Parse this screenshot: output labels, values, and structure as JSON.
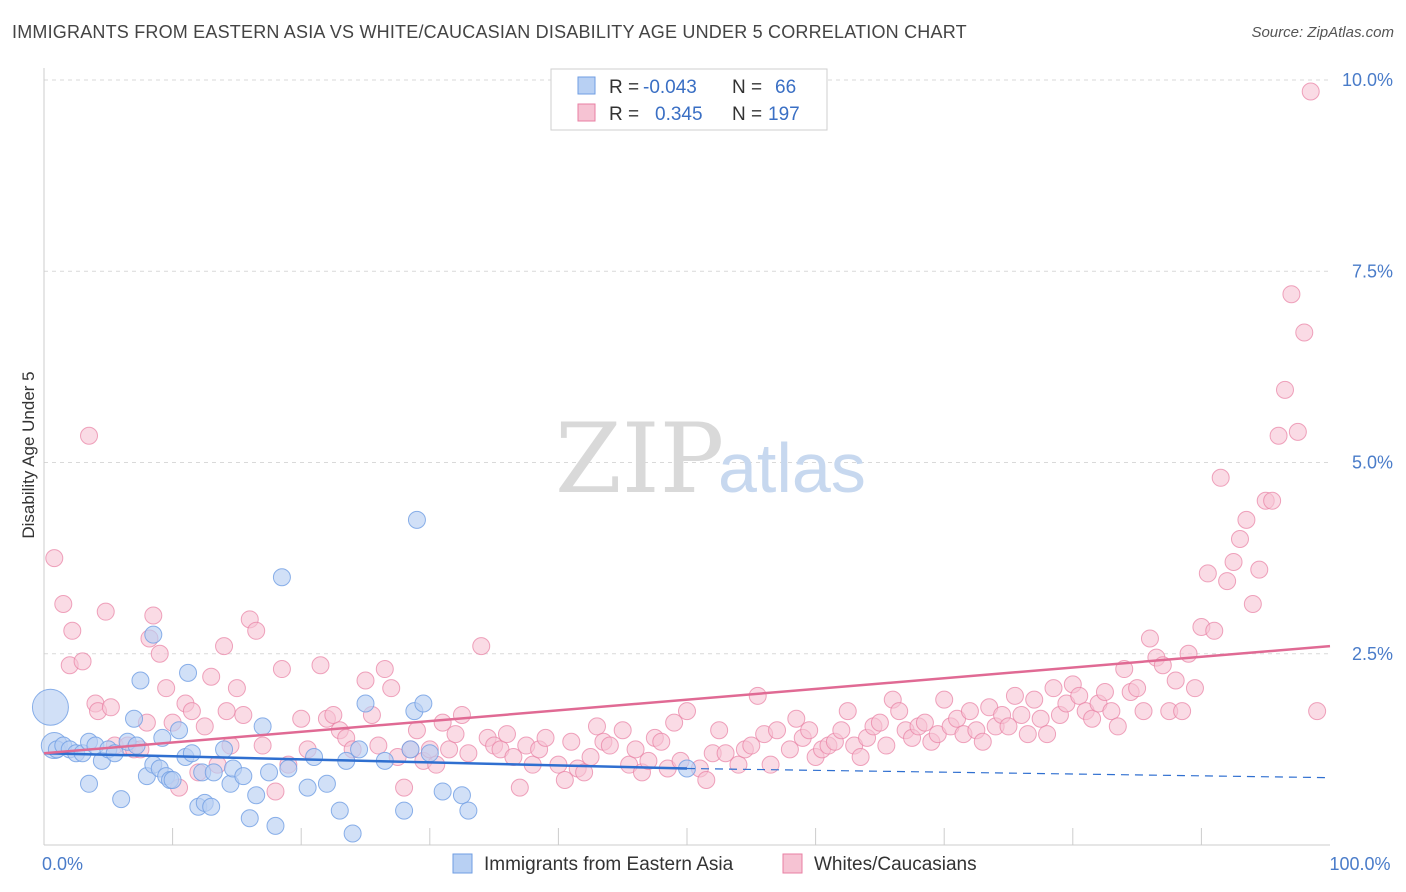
{
  "title": "IMMIGRANTS FROM EASTERN ASIA VS WHITE/CAUCASIAN DISABILITY AGE UNDER 5 CORRELATION CHART",
  "source": "Source: ZipAtlas.com",
  "watermark": {
    "zip": "ZIP",
    "atlas": "atlas"
  },
  "colors": {
    "blue": "#6f9ee3",
    "blue_fill": "#b8d0f3",
    "blue_line": "#2f6fd0",
    "pink": "#e87fa3",
    "pink_fill": "#f6c3d3",
    "pink_line": "#e06a94",
    "grid": "#d9d9d9",
    "tick_label": "#4a7cc9"
  },
  "legend": {
    "rows": [
      {
        "r_label": "R =",
        "r_value": "-0.043",
        "n_label": "N =",
        "n_value": "66"
      },
      {
        "r_label": "R =",
        "r_value": "0.345",
        "n_label": "N =",
        "n_value": "197"
      }
    ]
  },
  "chart_data": {
    "type": "scatter",
    "xlabel": "",
    "ylabel": "Disability Age Under 5",
    "xlim": [
      0,
      100
    ],
    "ylim": [
      0,
      10.5
    ],
    "y_ticks": [
      {
        "value": 2.5,
        "label": "2.5%"
      },
      {
        "value": 5.0,
        "label": "5.0%"
      },
      {
        "value": 7.5,
        "label": "7.5%"
      },
      {
        "value": 10.0,
        "label": "10.0%"
      }
    ],
    "x_ticks": [
      {
        "value": 0,
        "label": "0.0%"
      },
      {
        "value": 100,
        "label": "100.0%"
      }
    ],
    "grid": true,
    "legend_position": "top-center",
    "series": [
      {
        "name": "Immigrants from Eastern Asia",
        "color": "#6f9ee3",
        "trend": {
          "x0": 0,
          "y0": 1.2,
          "x1": 50,
          "y1": 1.0,
          "dashed_to_x": 100,
          "dashed_to_y": 0.88
        },
        "points": [
          [
            0.5,
            1.8,
            3
          ],
          [
            0.8,
            1.3,
            2
          ],
          [
            1.0,
            1.25,
            1
          ],
          [
            1.5,
            1.3,
            1
          ],
          [
            2.0,
            1.25,
            1
          ],
          [
            2.5,
            1.2,
            1
          ],
          [
            3.0,
            1.2,
            1
          ],
          [
            3.5,
            1.35,
            1
          ],
          [
            3.5,
            0.8,
            1
          ],
          [
            4.0,
            1.3,
            1
          ],
          [
            4.5,
            1.1,
            1
          ],
          [
            5.0,
            1.25,
            1
          ],
          [
            5.5,
            1.2,
            1
          ],
          [
            6.0,
            0.6,
            1
          ],
          [
            6.5,
            1.35,
            1
          ],
          [
            7.0,
            1.65,
            1
          ],
          [
            7.2,
            1.3,
            1
          ],
          [
            7.5,
            2.15,
            1
          ],
          [
            8.0,
            0.9,
            1
          ],
          [
            8.5,
            1.05,
            1
          ],
          [
            8.5,
            2.75,
            1
          ],
          [
            9.0,
            1.0,
            1
          ],
          [
            9.2,
            1.4,
            1
          ],
          [
            9.5,
            0.9,
            1
          ],
          [
            9.8,
            0.85,
            1
          ],
          [
            10.0,
            0.85,
            1
          ],
          [
            10.5,
            1.5,
            1
          ],
          [
            11.0,
            1.15,
            1
          ],
          [
            11.2,
            2.25,
            1
          ],
          [
            11.5,
            1.2,
            1
          ],
          [
            12.0,
            0.5,
            1
          ],
          [
            12.3,
            0.95,
            1
          ],
          [
            12.5,
            0.55,
            1
          ],
          [
            13.0,
            0.5,
            1
          ],
          [
            13.2,
            0.95,
            1
          ],
          [
            14.0,
            1.25,
            1
          ],
          [
            14.5,
            0.8,
            1
          ],
          [
            14.7,
            1.0,
            1
          ],
          [
            15.5,
            0.9,
            1
          ],
          [
            16.0,
            0.35,
            1
          ],
          [
            16.5,
            0.65,
            1
          ],
          [
            17.0,
            1.55,
            1
          ],
          [
            17.5,
            0.95,
            1
          ],
          [
            18.0,
            0.25,
            1
          ],
          [
            18.5,
            3.5,
            1
          ],
          [
            19.0,
            1.0,
            1
          ],
          [
            20.5,
            0.75,
            1
          ],
          [
            21.0,
            1.15,
            1
          ],
          [
            22.0,
            0.8,
            1
          ],
          [
            23.0,
            0.45,
            1
          ],
          [
            23.5,
            1.1,
            1
          ],
          [
            24.0,
            0.15,
            1
          ],
          [
            24.5,
            1.25,
            1
          ],
          [
            25.0,
            1.85,
            1
          ],
          [
            26.5,
            1.1,
            1
          ],
          [
            28.0,
            0.45,
            1
          ],
          [
            28.5,
            1.25,
            1
          ],
          [
            28.8,
            1.75,
            1
          ],
          [
            29.0,
            4.25,
            1
          ],
          [
            29.5,
            1.85,
            1
          ],
          [
            30.0,
            1.2,
            1
          ],
          [
            31.0,
            0.7,
            1
          ],
          [
            32.5,
            0.65,
            1
          ],
          [
            33.0,
            0.45,
            1
          ],
          [
            50.0,
            1.0,
            1
          ]
        ]
      },
      {
        "name": "Whites/Caucasians",
        "color": "#e87fa3",
        "trend": {
          "x0": 0,
          "y0": 1.2,
          "x1": 100,
          "y1": 2.6
        },
        "points": [
          [
            0.8,
            3.75
          ],
          [
            1.5,
            3.15
          ],
          [
            2.0,
            2.35
          ],
          [
            2.2,
            2.8
          ],
          [
            3.0,
            2.4
          ],
          [
            3.5,
            5.35
          ],
          [
            4.0,
            1.85
          ],
          [
            4.2,
            1.75
          ],
          [
            4.8,
            3.05
          ],
          [
            5.2,
            1.8
          ],
          [
            5.5,
            1.3
          ],
          [
            6.5,
            1.3
          ],
          [
            7.0,
            1.25
          ],
          [
            7.5,
            1.25
          ],
          [
            8.0,
            1.6
          ],
          [
            8.2,
            2.7
          ],
          [
            8.5,
            3.0
          ],
          [
            9.0,
            2.5
          ],
          [
            9.5,
            2.05
          ],
          [
            10.0,
            1.6
          ],
          [
            10.5,
            0.75
          ],
          [
            11.0,
            1.85
          ],
          [
            11.5,
            1.75
          ],
          [
            12.0,
            0.95
          ],
          [
            12.5,
            1.55
          ],
          [
            13.0,
            2.2
          ],
          [
            13.5,
            1.05
          ],
          [
            14.0,
            2.6
          ],
          [
            14.2,
            1.75
          ],
          [
            14.5,
            1.3
          ],
          [
            15.0,
            2.05
          ],
          [
            15.5,
            1.7
          ],
          [
            16.0,
            2.95
          ],
          [
            16.5,
            2.8
          ],
          [
            17.0,
            1.3
          ],
          [
            18.0,
            0.7
          ],
          [
            18.5,
            2.3
          ],
          [
            19.0,
            1.05
          ],
          [
            20.0,
            1.65
          ],
          [
            20.5,
            1.25
          ],
          [
            21.5,
            2.35
          ],
          [
            22.0,
            1.65
          ],
          [
            22.5,
            1.7
          ],
          [
            23.0,
            1.5
          ],
          [
            23.5,
            1.4
          ],
          [
            24.0,
            1.25
          ],
          [
            25.0,
            2.15
          ],
          [
            25.5,
            1.7
          ],
          [
            26.0,
            1.3
          ],
          [
            26.5,
            2.3
          ],
          [
            27.0,
            2.05
          ],
          [
            27.5,
            1.15
          ],
          [
            28.0,
            0.75
          ],
          [
            28.5,
            1.25
          ],
          [
            29.0,
            1.5
          ],
          [
            29.5,
            1.1
          ],
          [
            30.0,
            1.25
          ],
          [
            30.5,
            1.05
          ],
          [
            31.0,
            1.6
          ],
          [
            31.5,
            1.25
          ],
          [
            32.0,
            1.45
          ],
          [
            32.5,
            1.7
          ],
          [
            33.0,
            1.2
          ],
          [
            34.0,
            2.6
          ],
          [
            34.5,
            1.4
          ],
          [
            35.0,
            1.3
          ],
          [
            35.5,
            1.25
          ],
          [
            36.0,
            1.45
          ],
          [
            36.5,
            1.15
          ],
          [
            37.0,
            0.75
          ],
          [
            37.5,
            1.3
          ],
          [
            38.0,
            1.05
          ],
          [
            38.5,
            1.25
          ],
          [
            39.0,
            1.4
          ],
          [
            40.0,
            1.05
          ],
          [
            40.5,
            0.85
          ],
          [
            41.0,
            1.35
          ],
          [
            41.5,
            1.0
          ],
          [
            42.0,
            0.95
          ],
          [
            42.5,
            1.15
          ],
          [
            43.0,
            1.55
          ],
          [
            43.5,
            1.35
          ],
          [
            44.0,
            1.3
          ],
          [
            45.0,
            1.5
          ],
          [
            45.5,
            1.05
          ],
          [
            46.0,
            1.25
          ],
          [
            46.5,
            0.95
          ],
          [
            47.0,
            1.1
          ],
          [
            47.5,
            1.4
          ],
          [
            48.0,
            1.35
          ],
          [
            48.5,
            1.0
          ],
          [
            49.0,
            1.6
          ],
          [
            49.5,
            1.1
          ],
          [
            50.0,
            1.75
          ],
          [
            51.0,
            1.0
          ],
          [
            51.5,
            0.85
          ],
          [
            52.0,
            1.2
          ],
          [
            52.5,
            1.5
          ],
          [
            53.0,
            1.2
          ],
          [
            54.0,
            1.05
          ],
          [
            54.5,
            1.25
          ],
          [
            55.0,
            1.3
          ],
          [
            55.5,
            1.95
          ],
          [
            56.0,
            1.45
          ],
          [
            56.5,
            1.05
          ],
          [
            57.0,
            1.5
          ],
          [
            58.0,
            1.25
          ],
          [
            58.5,
            1.65
          ],
          [
            59.0,
            1.4
          ],
          [
            59.5,
            1.5
          ],
          [
            60.0,
            1.15
          ],
          [
            60.5,
            1.25
          ],
          [
            61.0,
            1.3
          ],
          [
            61.5,
            1.35
          ],
          [
            62.0,
            1.5
          ],
          [
            62.5,
            1.75
          ],
          [
            63.0,
            1.3
          ],
          [
            63.5,
            1.15
          ],
          [
            64.0,
            1.4
          ],
          [
            64.5,
            1.55
          ],
          [
            65.0,
            1.6
          ],
          [
            65.5,
            1.3
          ],
          [
            66.0,
            1.9
          ],
          [
            66.5,
            1.75
          ],
          [
            67.0,
            1.5
          ],
          [
            67.5,
            1.4
          ],
          [
            68.0,
            1.55
          ],
          [
            68.5,
            1.6
          ],
          [
            69.0,
            1.35
          ],
          [
            69.5,
            1.45
          ],
          [
            70.0,
            1.9
          ],
          [
            70.5,
            1.55
          ],
          [
            71.0,
            1.65
          ],
          [
            71.5,
            1.45
          ],
          [
            72.0,
            1.75
          ],
          [
            72.5,
            1.5
          ],
          [
            73.0,
            1.35
          ],
          [
            73.5,
            1.8
          ],
          [
            74.0,
            1.55
          ],
          [
            74.5,
            1.7
          ],
          [
            75.0,
            1.55
          ],
          [
            75.5,
            1.95
          ],
          [
            76.0,
            1.7
          ],
          [
            76.5,
            1.45
          ],
          [
            77.0,
            1.9
          ],
          [
            77.5,
            1.65
          ],
          [
            78.0,
            1.45
          ],
          [
            78.5,
            2.05
          ],
          [
            79.0,
            1.7
          ],
          [
            79.5,
            1.85
          ],
          [
            80.0,
            2.1
          ],
          [
            80.5,
            1.95
          ],
          [
            81.0,
            1.75
          ],
          [
            81.5,
            1.65
          ],
          [
            82.0,
            1.85
          ],
          [
            82.5,
            2.0
          ],
          [
            83.0,
            1.75
          ],
          [
            83.5,
            1.55
          ],
          [
            84.0,
            2.3
          ],
          [
            84.5,
            2.0
          ],
          [
            85.0,
            2.05
          ],
          [
            85.5,
            1.75
          ],
          [
            86.0,
            2.7
          ],
          [
            86.5,
            2.45
          ],
          [
            87.0,
            2.35
          ],
          [
            87.5,
            1.75
          ],
          [
            88.0,
            2.15
          ],
          [
            88.5,
            1.75
          ],
          [
            89.0,
            2.5
          ],
          [
            89.5,
            2.05
          ],
          [
            90.0,
            2.85
          ],
          [
            90.5,
            3.55
          ],
          [
            91.0,
            2.8
          ],
          [
            91.5,
            4.8
          ],
          [
            92.0,
            3.45
          ],
          [
            92.5,
            3.7
          ],
          [
            93.0,
            4.0
          ],
          [
            93.5,
            4.25
          ],
          [
            94.0,
            3.15
          ],
          [
            94.5,
            3.6
          ],
          [
            95.0,
            4.5
          ],
          [
            95.5,
            4.5
          ],
          [
            96.0,
            5.35
          ],
          [
            96.5,
            5.95
          ],
          [
            97.0,
            7.2
          ],
          [
            97.5,
            5.4
          ],
          [
            98.0,
            6.7
          ],
          [
            98.5,
            9.85
          ],
          [
            99.0,
            1.75
          ]
        ]
      }
    ]
  },
  "bottom_legend": [
    {
      "label": "Immigrants from Eastern Asia"
    },
    {
      "label": "Whites/Caucasians"
    }
  ]
}
